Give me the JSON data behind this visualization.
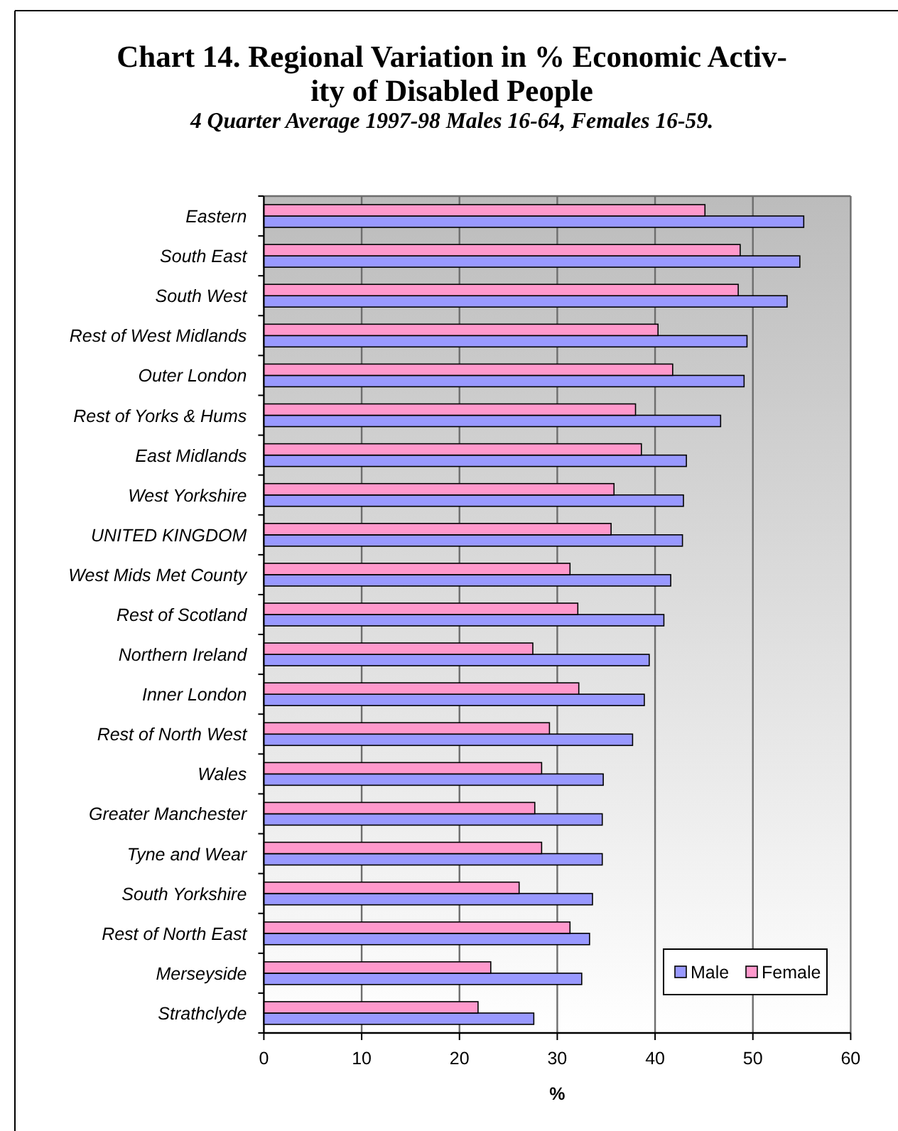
{
  "chart_data": {
    "type": "bar",
    "orientation": "horizontal",
    "title": "Chart 14. Regional Variation in % Economic Activ-\nity of Disabled People",
    "subtitle": "4 Quarter Average 1997-98 Males 16-64, Females 16-59.",
    "xlabel": "%",
    "categories": [
      "Eastern",
      "South East",
      "South West",
      "Rest of West Midlands",
      "Outer London",
      "Rest of Yorks & Hums",
      "East Midlands",
      "West Yorkshire",
      "UNITED KINGDOM",
      "West Mids Met County",
      "Rest of Scotland",
      "Northern Ireland",
      "Inner London",
      "Rest of North West",
      "Wales",
      "Greater Manchester",
      "Tyne and Wear",
      "South Yorkshire",
      "Rest of North East",
      "Merseyside",
      "Strathclyde"
    ],
    "series": [
      {
        "name": "Male",
        "color": "#9999ff",
        "values": [
          55.2,
          54.8,
          53.5,
          49.4,
          49.1,
          46.7,
          43.2,
          42.9,
          42.8,
          41.6,
          40.9,
          39.4,
          38.9,
          37.7,
          34.7,
          34.6,
          34.6,
          33.6,
          33.3,
          32.5,
          27.6
        ]
      },
      {
        "name": "Female",
        "color": "#ff99cc",
        "values": [
          45.1,
          48.7,
          48.5,
          40.3,
          41.8,
          38.0,
          38.6,
          35.8,
          35.5,
          31.3,
          32.1,
          27.5,
          32.2,
          29.2,
          28.4,
          27.7,
          28.4,
          26.1,
          31.3,
          23.2,
          21.9
        ]
      }
    ],
    "xlim": [
      0,
      60
    ],
    "xticks": [
      0,
      10,
      20,
      30,
      40,
      50,
      60
    ],
    "grid": "x",
    "legend": "bottom right"
  }
}
